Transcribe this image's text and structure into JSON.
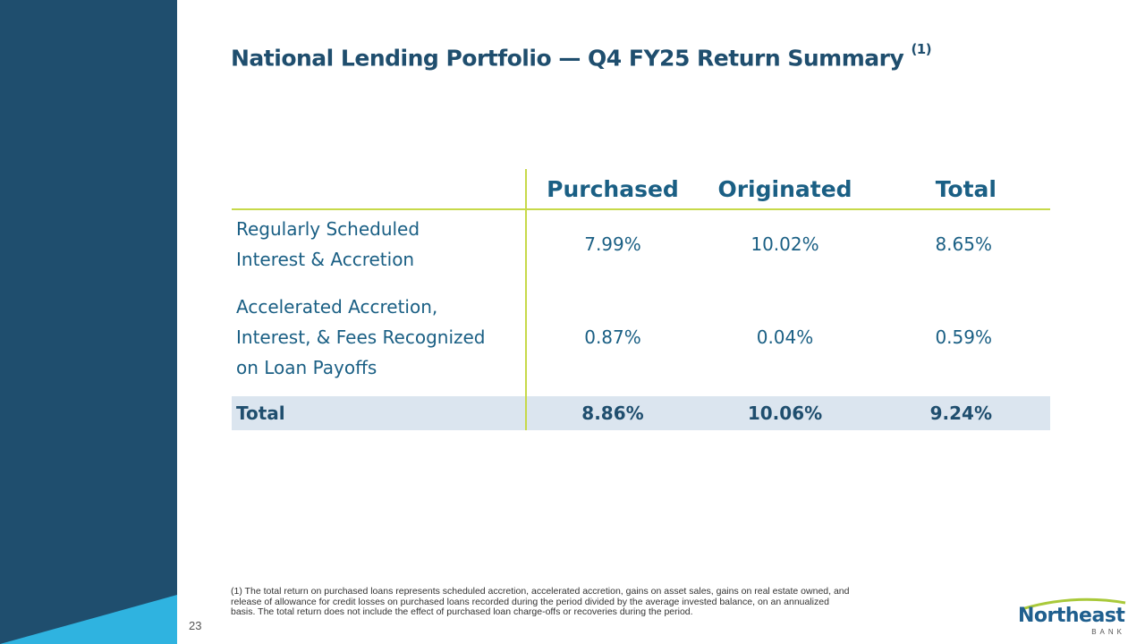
{
  "title": "National Lending Portfolio — Q4 FY25 Return Summary",
  "title_footnote_marker": "(1)",
  "page_number": "23",
  "table": {
    "headers": [
      "",
      "Purchased",
      "Originated",
      "Total"
    ],
    "rows": [
      {
        "label_lines": [
          "Regularly Scheduled",
          "Interest & Accretion"
        ],
        "values": [
          "7.99%",
          "10.02%",
          "8.65%"
        ]
      },
      {
        "label_lines": [
          "Accelerated Accretion,",
          "Interest, & Fees Recognized",
          "on Loan Payoffs"
        ],
        "values": [
          "0.87%",
          "0.04%",
          "0.59%"
        ]
      }
    ],
    "total_row": {
      "label": "Total",
      "values": [
        "8.86%",
        "10.06%",
        "9.24%"
      ]
    }
  },
  "footnote_lines": [
    "(1) The total return on purchased loans represents scheduled accretion, accelerated accretion, gains on asset sales, gains on real estate owned, and",
    "release of allowance for credit losses on purchased loans recorded during the period divided by the average invested balance, on an annualized",
    "basis. The total return does not include the effect of purchased loan charge-offs or recoveries during the period."
  ],
  "logo": {
    "word": "Northeast",
    "sub": "BANK"
  },
  "colors": {
    "sidebar": "#1f4e6e",
    "sidebar_accent": "#2fb3e0",
    "title": "#1f4e6e",
    "table_text": "#1a5f84",
    "table_rule": "#c7d94a",
    "total_row_bg": "#dbe5ef",
    "logo_arc": "#a9c93a"
  }
}
